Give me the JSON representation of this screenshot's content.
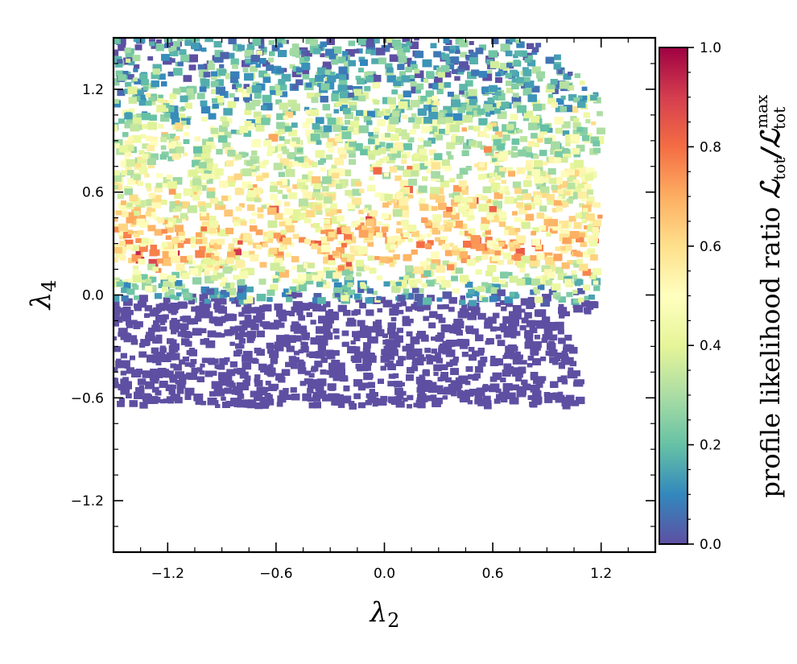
{
  "chart_data": {
    "type": "scatter",
    "title": "",
    "xlabel": "λ2",
    "ylabel": "λ4",
    "x_axis": {
      "symbol": "λ",
      "subscript": "2",
      "range": [
        -1.5,
        1.5
      ],
      "ticks": [
        -1.2,
        -0.6,
        0.0,
        0.6,
        1.2
      ],
      "tick_labels": [
        "−1.2",
        "−0.6",
        "0.0",
        "0.6",
        "1.2"
      ]
    },
    "y_axis": {
      "symbol": "λ",
      "subscript": "4",
      "range": [
        -1.5,
        1.5
      ],
      "ticks": [
        -1.2,
        -0.6,
        0.0,
        0.6,
        1.2
      ],
      "tick_labels": [
        "−1.2",
        "−0.6",
        "0.0",
        "0.6",
        "1.2"
      ]
    },
    "grid": false,
    "colorbar": {
      "label_prefix": "profile likelihood ratio ",
      "label_math": "ℒtot/ℒtot^max",
      "range": [
        0.0,
        1.0
      ],
      "ticks": [
        0.0,
        0.2,
        0.4,
        0.6,
        0.8,
        1.0
      ],
      "tick_labels": [
        "0.0",
        "0.2",
        "0.4",
        "0.6",
        "0.8",
        "1.0"
      ],
      "colormap": "Spectral_r",
      "colors": [
        "#5e4fa2",
        "#3288bd",
        "#66c2a5",
        "#abdda4",
        "#e6f598",
        "#ffffbf",
        "#fee08b",
        "#fdae61",
        "#f46d43",
        "#d53e4f",
        "#9e0142"
      ]
    },
    "series": [
      {
        "description": "dense points; λ4 below about -0.05 have ratio 0 (dark purple), above that ratio rises to about 0.5-0.8 near λ4≈0.3 and falls back toward 0.1 near λ4≈1.4",
        "region": {
          "x": [
            -1.5,
            1.2
          ],
          "y": [
            -0.65,
            1.5
          ]
        },
        "profile": [
          {
            "y": -0.65,
            "ratio": 0.0
          },
          {
            "y": -0.05,
            "ratio": 0.0
          },
          {
            "y": 0.05,
            "ratio": 0.25
          },
          {
            "y": 0.2,
            "ratio": 0.55
          },
          {
            "y": 0.3,
            "ratio": 0.62
          },
          {
            "y": 0.5,
            "ratio": 0.5
          },
          {
            "y": 0.75,
            "ratio": 0.42
          },
          {
            "y": 1.0,
            "ratio": 0.3
          },
          {
            "y": 1.25,
            "ratio": 0.18
          },
          {
            "y": 1.5,
            "ratio": 0.08
          }
        ]
      }
    ]
  }
}
